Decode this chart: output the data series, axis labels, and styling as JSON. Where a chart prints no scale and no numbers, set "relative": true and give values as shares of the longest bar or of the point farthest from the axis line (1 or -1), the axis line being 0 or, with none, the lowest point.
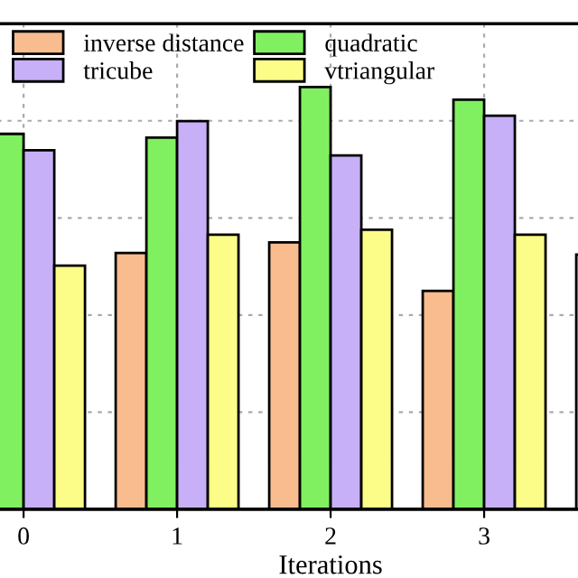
{
  "chart_data": {
    "type": "bar",
    "relative": true,
    "xlabel": "Iterations",
    "categories": [
      "0",
      "1",
      "2",
      "3",
      null
    ],
    "series": [
      {
        "name": "inverse distance",
        "color": "#f9bc8f",
        "values": [
          null,
          0.607,
          0.632,
          0.517,
          0.603
        ]
      },
      {
        "name": "quadratic",
        "color": "#80f060",
        "values": [
          0.889,
          0.88,
          1,
          0.97,
          null
        ]
      },
      {
        "name": "tricube",
        "color": "#c8b0f8",
        "values": [
          0.85,
          0.919,
          0.838,
          0.932,
          null
        ]
      },
      {
        "name": "vtriangular",
        "color": "#fcfc88",
        "values": [
          0.577,
          0.65,
          0.662,
          0.65,
          null
        ]
      }
    ],
    "grid": true,
    "legend": "top left"
  }
}
